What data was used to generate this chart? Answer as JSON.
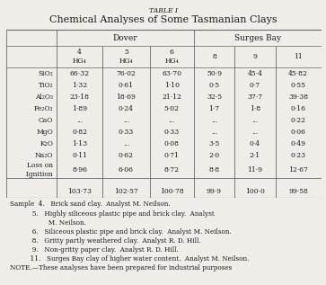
{
  "title": "TABLE I",
  "subtitle": "Chemical Analyses of Some Tasmanian Clays",
  "col_header_top": [
    "",
    "Dover",
    "",
    "",
    "Surges Bay",
    "",
    ""
  ],
  "col_header_bot": [
    "",
    "4\nHG₄",
    "5\nHG₄",
    "6\nHG₄",
    "8",
    "9",
    "11"
  ],
  "row_labels": [
    "SiO₂",
    "TiO₂",
    "Al₂O₃",
    "Fe₂O₃",
    "CaO",
    "MgO",
    "K₂O",
    "Na₂O",
    "Loss on\n  Ignition"
  ],
  "data": [
    [
      "66·32",
      "76·02",
      "63·70",
      "50·9",
      "45·4",
      "45·82"
    ],
    [
      "1·32",
      "0·61",
      "1·10",
      "0·5",
      "0·7",
      "0·55"
    ],
    [
      "23·18",
      "18·69",
      "21·12",
      "32·5",
      "37·7",
      "39·38"
    ],
    [
      "1·89",
      "0·24",
      "5·02",
      "1·7",
      "1·8",
      "0·16"
    ],
    [
      "...",
      "...",
      "...",
      "...",
      "...",
      "0·22"
    ],
    [
      "0·82",
      "0·33",
      "0·33",
      "...",
      "...",
      "0·06"
    ],
    [
      "1·13",
      "...",
      "0·08",
      "3·5",
      "0·4",
      "0·49"
    ],
    [
      "0·11",
      "0·62",
      "0·71",
      "2·0",
      "2·1",
      "0·23"
    ],
    [
      "8·96",
      "6·06",
      "8·72",
      "8·8",
      "11·9",
      "12·67"
    ]
  ],
  "totals": [
    "103·73",
    "102·57",
    "100·78",
    "99·9",
    "100·0",
    "99·58"
  ],
  "footnote_lines": [
    "Sample  4.   Brick sand clay.  Analyst M. Neilson.",
    "           5.   Highly siliceous plastic pipe and brick clay.  Analyst",
    "                   M. Neilson.",
    "           6.   Siliceous plastic pipe and brick clay.  Analyst M. Neilson.",
    "           8.   Gritty partly weathered clay.  Analyst R. D. Hill.",
    "           9.   Non-gritty paper clay.  Analyst R. D. Hill.",
    "          11.   Surges Bay clay of higher water content.  Analyst M. Neilson.",
    "NOTE.—These analyses have been prepared for industrial purposes"
  ],
  "bg_color": "#f0ede8",
  "text_color": "#1a1a1a",
  "line_color": "#666666"
}
